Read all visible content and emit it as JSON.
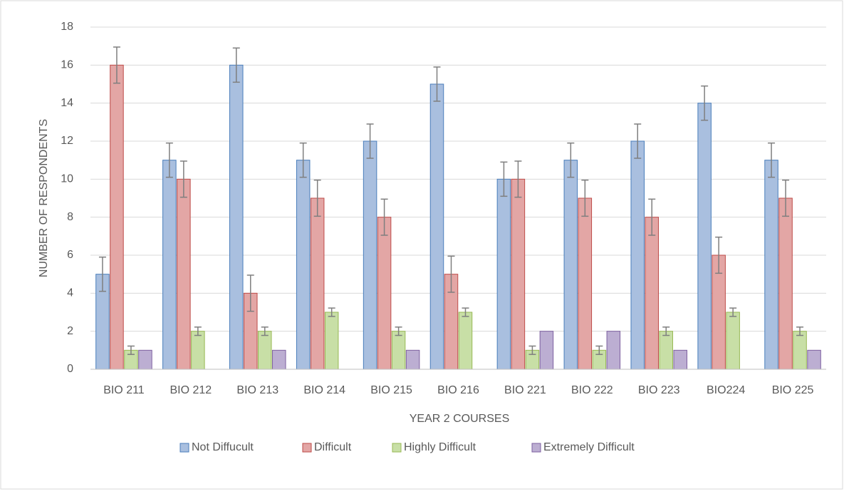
{
  "chart_data": {
    "type": "bar",
    "x_label": "YEAR 2 COURSES",
    "y_label": "NUMBER OF RESPONDENTS",
    "categories": [
      "BIO 211",
      "BIO 212",
      "BIO 213",
      "BIO 214",
      "BIO 215",
      "BIO 216",
      "BIO 221",
      "BIO 222",
      "BIO 223",
      "BIO224",
      "BIO 225"
    ],
    "series": [
      {
        "name": "Not Diffucult",
        "color": "#a9bfdf",
        "stroke": "#4a7ebb",
        "values": [
          5,
          11,
          16,
          11,
          12,
          15,
          10,
          11,
          12,
          14,
          11
        ],
        "errors": [
          0.9,
          0.9,
          0.9,
          0.9,
          0.9,
          0.9,
          0.9,
          0.9,
          0.9,
          0.9,
          0.9
        ]
      },
      {
        "name": "Difficult",
        "color": "#e3a6a5",
        "stroke": "#be4b48",
        "values": [
          16,
          10,
          4,
          9,
          8,
          5,
          10,
          9,
          8,
          6,
          9
        ],
        "errors": [
          0.95,
          0.95,
          0.95,
          0.95,
          0.95,
          0.95,
          0.95,
          0.95,
          0.95,
          0.95,
          0.95
        ]
      },
      {
        "name": "Highly Difficult",
        "color": "#c8dfa6",
        "stroke": "#98b954",
        "values": [
          1,
          2,
          2,
          3,
          2,
          3,
          1,
          1,
          2,
          3,
          2
        ],
        "errors": [
          0.22,
          0.22,
          0.22,
          0.22,
          0.22,
          0.22,
          0.22,
          0.22,
          0.22,
          0.22,
          0.22
        ]
      },
      {
        "name": "Extremely Difficult",
        "color": "#bcaed2",
        "stroke": "#7d60a0",
        "values": [
          1,
          0,
          1,
          0,
          1,
          0,
          2,
          2,
          1,
          0,
          1
        ]
      }
    ],
    "ylim": [
      0,
      18
    ],
    "yticks": [
      0,
      2,
      4,
      6,
      8,
      10,
      12,
      14,
      16,
      18
    ],
    "grid": true,
    "legend": "bottom"
  }
}
